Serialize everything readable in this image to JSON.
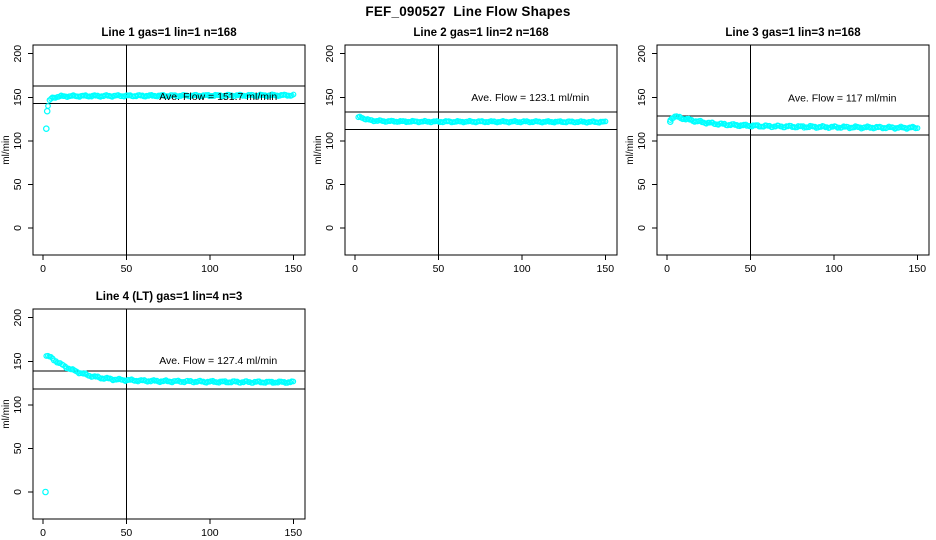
{
  "figure": {
    "title": "FEF_090527  Line Flow Shapes",
    "background": "#ffffff"
  },
  "chart_data": {
    "type": "scatter",
    "marker": {
      "shape": "open-circle",
      "color": "#00ffff",
      "radius_px": 2.3
    },
    "axes": {
      "xlim": [
        -6,
        157
      ],
      "ylim": [
        -31,
        210
      ],
      "xticks": [
        0,
        50,
        100,
        150
      ],
      "yticks": [
        0,
        50,
        100,
        150,
        200
      ],
      "ylabel": "ml/min",
      "grid": false,
      "reference_vline_x": 50
    },
    "plots": [
      {
        "title": "Line 1 gas=1 lin=1 n=168",
        "n": 168,
        "ave_flow": 151.7,
        "ave_flow_label": "Ave. Flow =  151.7  ml/min",
        "label_pos": [
          105,
          151
        ],
        "vline_x": 50,
        "hlines": [
          163,
          143
        ],
        "knots": [
          [
            3,
            140
          ],
          [
            3.5,
            144
          ],
          [
            4,
            146.5
          ],
          [
            5,
            148.5
          ],
          [
            6,
            149.5
          ],
          [
            8,
            150.5
          ],
          [
            10,
            151
          ],
          [
            15,
            151.3
          ],
          [
            20,
            151.4
          ],
          [
            30,
            151.5
          ],
          [
            50,
            151.7
          ],
          [
            80,
            151.9
          ],
          [
            110,
            152.1
          ],
          [
            130,
            152.2
          ],
          [
            150,
            152.4
          ]
        ],
        "outliers": [
          [
            2,
            114
          ],
          [
            2.5,
            134
          ]
        ],
        "marker_count": 165,
        "jitter": 0.8
      },
      {
        "title": "Line 2 gas=1 lin=2 n=168",
        "n": 168,
        "ave_flow": 123.1,
        "ave_flow_label": "Ave. Flow =  123.1  ml/min",
        "label_pos": [
          105,
          150
        ],
        "vline_x": 50,
        "hlines": [
          133,
          113
        ],
        "knots": [
          [
            2,
            126.5
          ],
          [
            3,
            127.5
          ],
          [
            4,
            127.2
          ],
          [
            5,
            126
          ],
          [
            6,
            125
          ],
          [
            8,
            124
          ],
          [
            10,
            123.4
          ],
          [
            15,
            122.8
          ],
          [
            20,
            122.5
          ],
          [
            30,
            122.2
          ],
          [
            50,
            122
          ],
          [
            80,
            122
          ],
          [
            110,
            121.9
          ],
          [
            130,
            121.8
          ],
          [
            150,
            121.6
          ]
        ],
        "outliers": [],
        "marker_count": 165,
        "jitter": 0.7
      },
      {
        "title": "Line 3 gas=1 lin=3 n=168",
        "n": 168,
        "ave_flow": 117,
        "ave_flow_label": "Ave. Flow =  117  ml/min",
        "label_pos": [
          105,
          149
        ],
        "vline_x": 50,
        "hlines": [
          128.5,
          106.5
        ],
        "knots": [
          [
            2,
            124.5
          ],
          [
            3,
            126.5
          ],
          [
            4,
            127.5
          ],
          [
            5,
            127.8
          ],
          [
            7,
            127
          ],
          [
            10,
            125.5
          ],
          [
            15,
            123.5
          ],
          [
            20,
            121.8
          ],
          [
            25,
            120.5
          ],
          [
            30,
            119.5
          ],
          [
            40,
            118.2
          ],
          [
            50,
            117.4
          ],
          [
            60,
            116.8
          ],
          [
            80,
            116.2
          ],
          [
            100,
            115.8
          ],
          [
            120,
            115.4
          ],
          [
            150,
            115
          ]
        ],
        "outliers": [
          [
            2,
            122
          ]
        ],
        "marker_count": 165,
        "jitter": 1.0
      },
      {
        "title": "Line 4 (LT) gas=1 lin=4 n=3",
        "n": 3,
        "ave_flow": 127.4,
        "ave_flow_label": "Ave. Flow =  127.4  ml/min",
        "label_pos": [
          105,
          151
        ],
        "vline_x": 50,
        "hlines": [
          139,
          118
        ],
        "knots": [
          [
            2,
            156.5
          ],
          [
            4,
            155
          ],
          [
            6,
            152.5
          ],
          [
            8,
            150
          ],
          [
            10,
            147.5
          ],
          [
            12,
            145.2
          ],
          [
            15,
            142.3
          ],
          [
            18,
            139.8
          ],
          [
            21,
            137.6
          ],
          [
            24,
            135.7
          ],
          [
            27,
            134
          ],
          [
            30,
            132.6
          ],
          [
            34,
            131.2
          ],
          [
            38,
            130.2
          ],
          [
            42,
            129.4
          ],
          [
            46,
            128.8
          ],
          [
            50,
            128.4
          ],
          [
            55,
            128
          ],
          [
            60,
            127.7
          ],
          [
            70,
            127.2
          ],
          [
            80,
            126.9
          ],
          [
            90,
            126.7
          ],
          [
            100,
            126.5
          ],
          [
            115,
            126.3
          ],
          [
            130,
            126.1
          ],
          [
            150,
            126
          ]
        ],
        "outliers": [
          [
            1.5,
            0
          ]
        ],
        "marker_count": 160,
        "jitter": 0.9
      }
    ]
  }
}
